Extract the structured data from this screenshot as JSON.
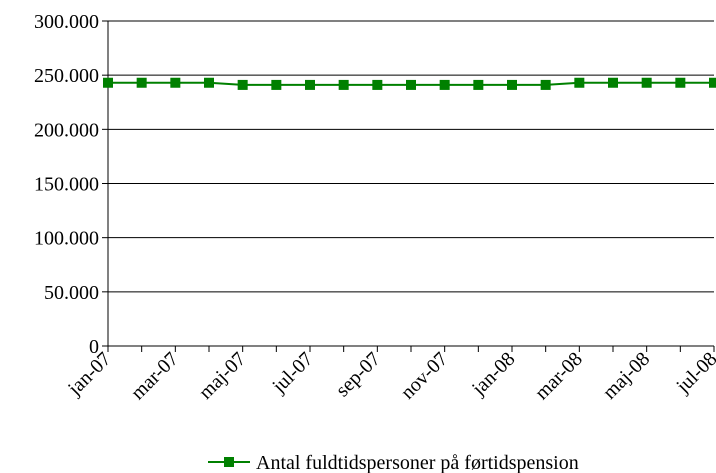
{
  "chart_data": {
    "type": "line",
    "categories": [
      "jan-07",
      null,
      "mar-07",
      null,
      "maj-07",
      null,
      "jul-07",
      null,
      "sep-07",
      null,
      "nov-07",
      null,
      "jan-08",
      null,
      "mar-08",
      null,
      "maj-08",
      null,
      "jul-08"
    ],
    "series": [
      {
        "name": "Antal fuldtidspersoner på førtidspension",
        "color": "#008000",
        "values": [
          243000,
          243000,
          243000,
          243000,
          241000,
          241000,
          241000,
          241000,
          241000,
          241000,
          241000,
          241000,
          241000,
          241000,
          243000,
          243000,
          243000,
          243000,
          243000
        ]
      }
    ],
    "ylim": [
      0,
      300000
    ],
    "yticks": [
      0,
      {
        "value": 50000,
        "label": "50.000"
      },
      {
        "value": 100000,
        "label": "100.000"
      },
      {
        "value": 150000,
        "label": "150.000"
      },
      {
        "value": 200000,
        "label": "200.000"
      },
      {
        "value": 250000,
        "label": "250.000"
      },
      {
        "value": 300000,
        "label": "300.000"
      }
    ],
    "grid": true,
    "legend": "bottom"
  }
}
